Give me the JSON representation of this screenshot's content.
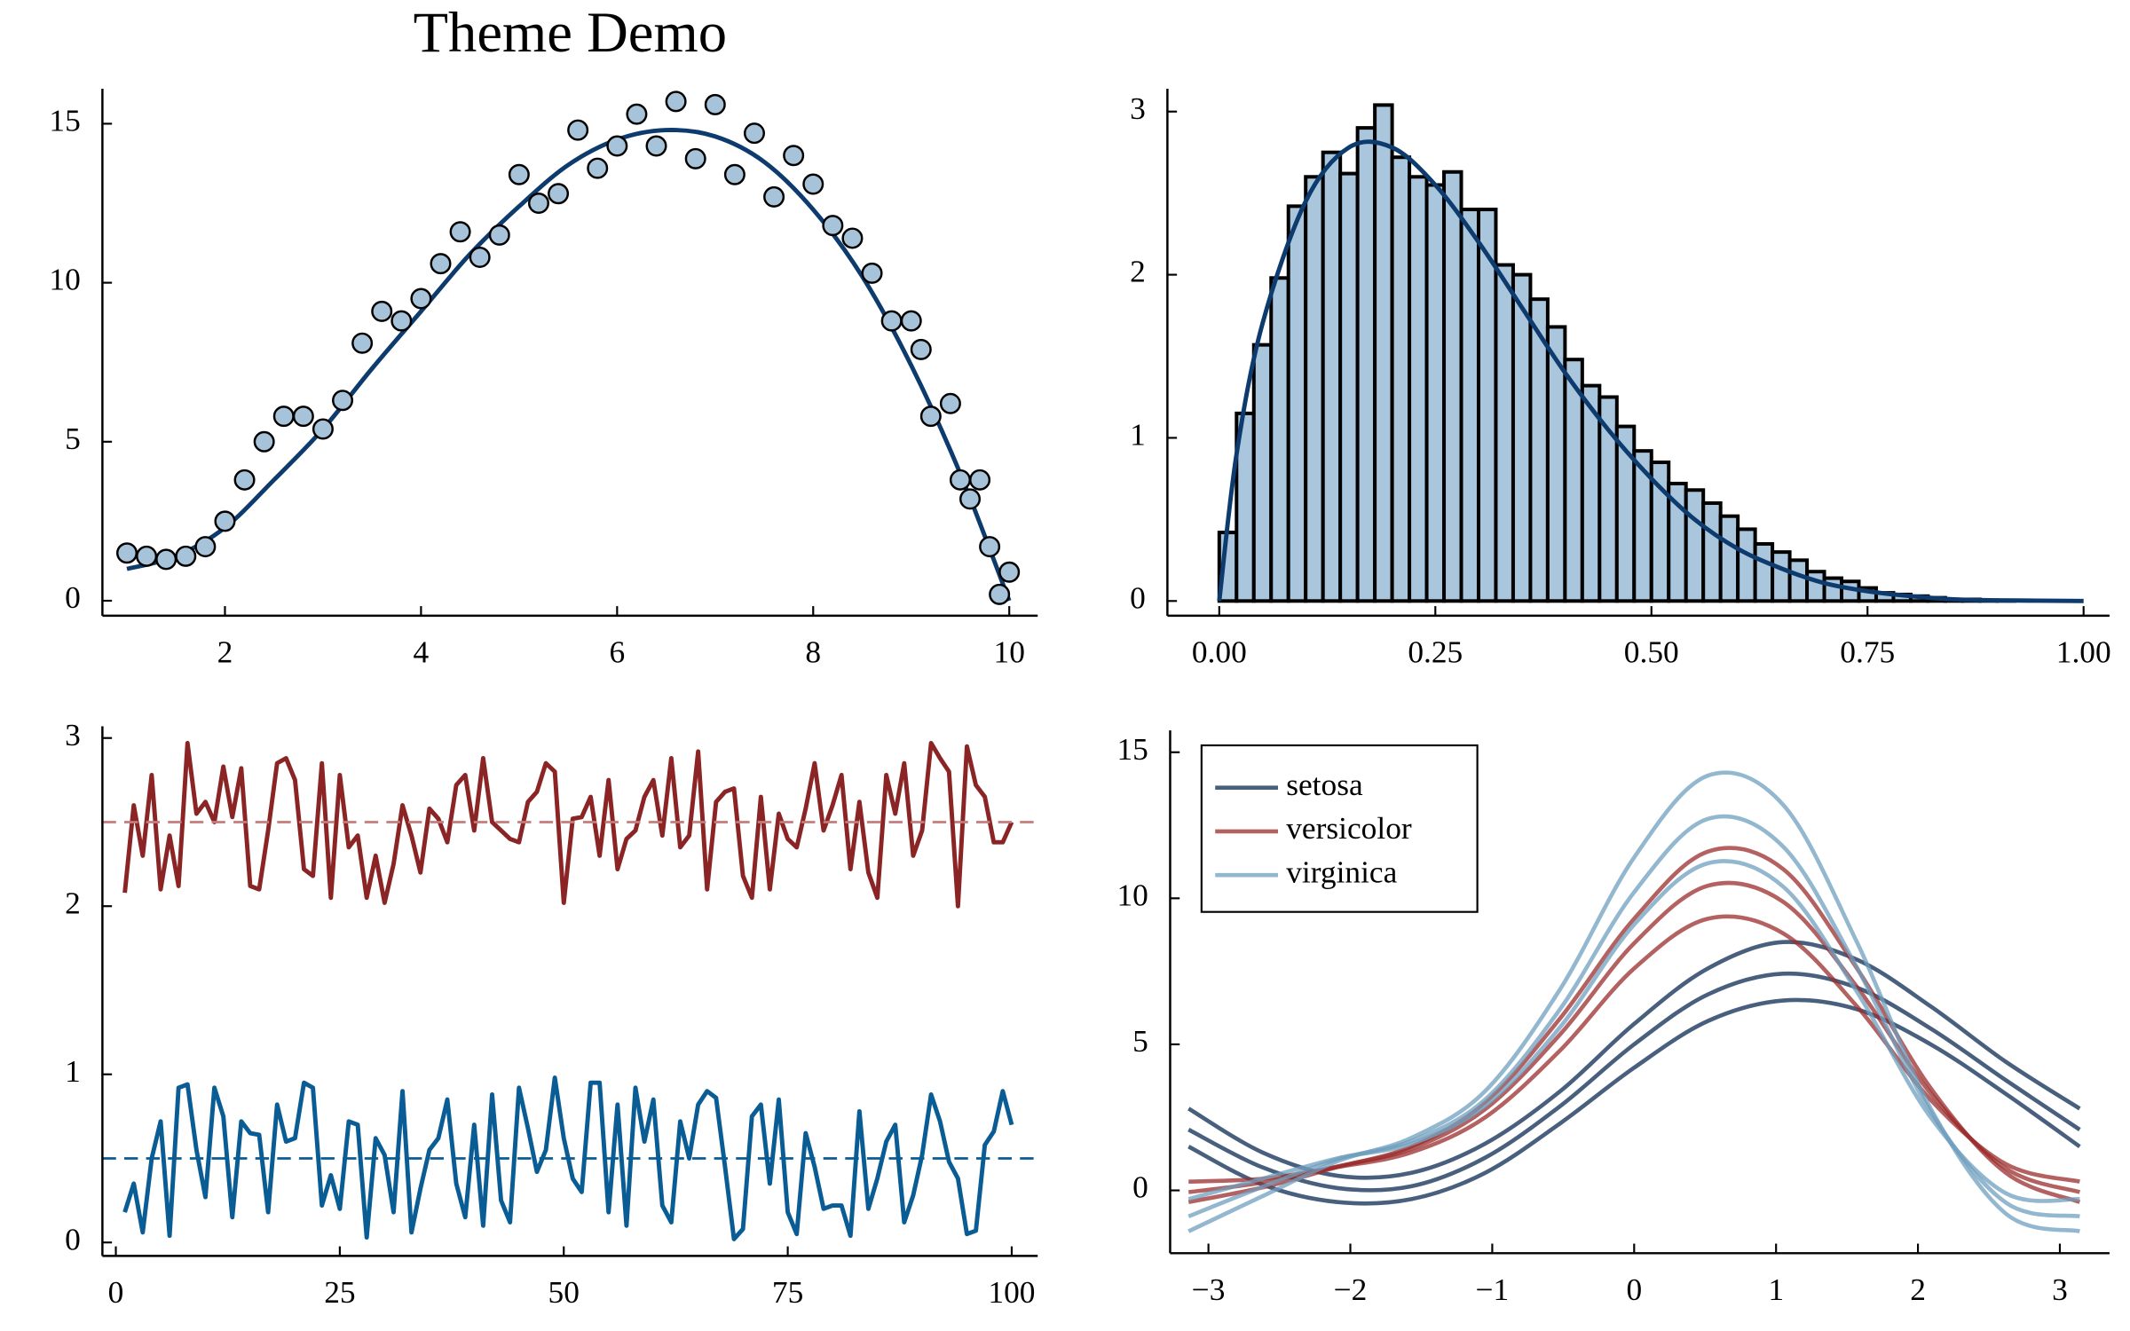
{
  "chart_data": [
    {
      "type": "scatter",
      "title": "Theme Demo",
      "xlim": [
        0.75,
        10.29
      ],
      "ylim": [
        -0.47,
        16.1
      ],
      "xticks": [
        2,
        4,
        6,
        8,
        10
      ],
      "yticks": [
        0,
        5,
        10,
        15
      ],
      "series": [
        {
          "type": "scatter",
          "color": "#a6c3d9",
          "x": [
            1.0,
            1.2,
            1.4,
            1.6,
            1.8,
            2.0,
            2.2,
            2.4,
            2.6,
            2.8,
            3.0,
            3.2,
            3.4,
            3.6,
            3.8,
            4.0,
            4.2,
            4.4,
            4.6,
            4.8,
            5.0,
            5.2,
            5.4,
            5.6,
            5.8,
            6.0,
            6.2,
            6.4,
            6.6,
            6.8,
            7.0,
            7.2,
            7.4,
            7.6,
            7.8,
            8.0,
            8.2,
            8.4,
            8.6,
            8.8,
            9.0,
            9.1,
            9.2,
            9.4,
            9.5,
            9.6,
            9.7,
            9.8,
            9.9,
            10.0
          ],
          "values": [
            1.5,
            1.4,
            1.3,
            1.4,
            1.7,
            2.5,
            3.8,
            5.0,
            5.8,
            5.8,
            5.4,
            6.3,
            8.1,
            9.1,
            8.8,
            9.5,
            10.6,
            11.6,
            10.8,
            11.5,
            13.4,
            12.5,
            12.8,
            14.8,
            13.6,
            14.3,
            15.3,
            14.3,
            15.7,
            13.9,
            15.6,
            13.4,
            14.7,
            12.7,
            14.0,
            13.1,
            11.8,
            11.4,
            10.3,
            8.8,
            8.8,
            7.9,
            5.8,
            6.2,
            3.8,
            3.2,
            3.8,
            1.7,
            0.2,
            0.9
          ]
        },
        {
          "type": "line",
          "color": "#0d3b6e",
          "x": [
            1.0,
            1.5,
            2.0,
            2.5,
            3.0,
            3.5,
            4.0,
            4.5,
            5.0,
            5.5,
            6.0,
            6.5,
            7.0,
            7.5,
            8.0,
            8.5,
            9.0,
            9.5,
            10.0
          ],
          "values": [
            1.0,
            1.4,
            2.3,
            3.8,
            5.4,
            7.3,
            9.1,
            10.9,
            12.4,
            13.7,
            14.5,
            14.8,
            14.6,
            13.8,
            12.3,
            10.2,
            7.4,
            4.0,
            0.0
          ]
        }
      ]
    },
    {
      "type": "histogram",
      "xlim": [
        -0.06,
        1.03
      ],
      "ylim": [
        -0.09,
        3.14
      ],
      "xticks": [
        {
          "value": 0,
          "label": "0.00"
        },
        {
          "value": 0.25,
          "label": "0.25"
        },
        {
          "value": 0.5,
          "label": "0.50"
        },
        {
          "value": 0.75,
          "label": "0.75"
        },
        {
          "value": 1,
          "label": "1.00"
        }
      ],
      "yticks": [
        0,
        1,
        2,
        3
      ],
      "color": "#a9c6dd",
      "edge_color": "#000000",
      "bins": [
        0,
        0.02,
        0.04,
        0.06,
        0.08,
        0.1,
        0.12,
        0.14,
        0.16,
        0.18,
        0.2,
        0.22,
        0.24,
        0.26,
        0.28,
        0.3,
        0.32,
        0.34,
        0.36,
        0.38,
        0.4,
        0.42,
        0.44,
        0.46,
        0.48,
        0.5,
        0.52,
        0.54,
        0.56,
        0.58,
        0.6,
        0.62,
        0.64,
        0.66,
        0.68,
        0.7,
        0.72,
        0.74,
        0.76,
        0.78,
        0.8,
        0.82,
        0.84,
        0.86,
        0.88,
        0.9,
        0.92,
        0.94,
        0.96,
        0.98,
        1.0
      ],
      "values": [
        0.42,
        1.15,
        1.57,
        1.98,
        2.42,
        2.6,
        2.75,
        2.62,
        2.9,
        3.04,
        2.72,
        2.6,
        2.55,
        2.63,
        2.4,
        2.4,
        2.06,
        2.0,
        1.85,
        1.68,
        1.48,
        1.32,
        1.25,
        1.07,
        0.92,
        0.85,
        0.72,
        0.68,
        0.6,
        0.52,
        0.44,
        0.35,
        0.3,
        0.25,
        0.18,
        0.14,
        0.12,
        0.08,
        0.05,
        0.04,
        0.03,
        0.02,
        0.01,
        0.01,
        0.005,
        0.002,
        0,
        0,
        0,
        0
      ],
      "series": [
        {
          "type": "line",
          "color": "#0d3b6e",
          "x": [
            0,
            0.02,
            0.05,
            0.1,
            0.15,
            0.2,
            0.25,
            0.3,
            0.35,
            0.4,
            0.45,
            0.5,
            0.55,
            0.6,
            0.65,
            0.7,
            0.75,
            0.8,
            0.85,
            0.9,
            1.0
          ],
          "values": [
            0,
            0.9,
            1.7,
            2.45,
            2.78,
            2.78,
            2.55,
            2.2,
            1.8,
            1.4,
            1.05,
            0.75,
            0.5,
            0.32,
            0.2,
            0.11,
            0.06,
            0.03,
            0.01,
            0.004,
            0
          ]
        }
      ]
    },
    {
      "type": "line",
      "xlim": [
        -1.5,
        102.9
      ],
      "ylim": [
        -0.08,
        3.07
      ],
      "xticks": [
        0,
        25,
        50,
        75,
        100
      ],
      "yticks": [
        0,
        1,
        2,
        3
      ],
      "x": [
        1,
        2,
        3,
        4,
        5,
        6,
        7,
        8,
        9,
        10,
        11,
        12,
        13,
        14,
        15,
        16,
        17,
        18,
        19,
        20,
        21,
        22,
        23,
        24,
        25,
        26,
        27,
        28,
        29,
        30,
        31,
        32,
        33,
        34,
        35,
        36,
        37,
        38,
        39,
        40,
        41,
        42,
        43,
        44,
        45,
        46,
        47,
        48,
        49,
        50,
        51,
        52,
        53,
        54,
        55,
        56,
        57,
        58,
        59,
        60,
        61,
        62,
        63,
        64,
        65,
        66,
        67,
        68,
        69,
        70,
        71,
        72,
        73,
        74,
        75,
        76,
        77,
        78,
        79,
        80,
        81,
        82,
        83,
        84,
        85,
        86,
        87,
        88,
        89,
        90,
        91,
        92,
        93,
        94,
        95,
        96,
        97,
        98,
        99,
        100
      ],
      "series": [
        {
          "type": "line",
          "color": "#8b2525",
          "values": [
            2.08,
            2.6,
            2.3,
            2.78,
            2.1,
            2.42,
            2.12,
            2.97,
            2.55,
            2.62,
            2.5,
            2.83,
            2.53,
            2.82,
            2.12,
            2.1,
            2.45,
            2.85,
            2.88,
            2.75,
            2.22,
            2.18,
            2.85,
            2.05,
            2.78,
            2.35,
            2.42,
            2.05,
            2.3,
            2.02,
            2.25,
            2.6,
            2.42,
            2.2,
            2.58,
            2.52,
            2.38,
            2.72,
            2.78,
            2.45,
            2.88,
            2.5,
            2.45,
            2.4,
            2.38,
            2.62,
            2.68,
            2.85,
            2.8,
            2.02,
            2.52,
            2.53,
            2.65,
            2.3,
            2.75,
            2.22,
            2.4,
            2.45,
            2.65,
            2.75,
            2.42,
            2.88,
            2.35,
            2.42,
            2.92,
            2.1,
            2.62,
            2.68,
            2.7,
            2.18,
            2.05,
            2.65,
            2.1,
            2.55,
            2.4,
            2.35,
            2.58,
            2.85,
            2.45,
            2.6,
            2.78,
            2.22,
            2.62,
            2.2,
            2.05,
            2.78,
            2.55,
            2.85,
            2.3,
            2.45,
            2.97,
            2.88,
            2.8,
            2.0,
            2.95,
            2.72,
            2.65,
            2.38,
            2.38,
            2.5
          ]
        },
        {
          "type": "line",
          "color": "#0a5c94",
          "values": [
            0.18,
            0.35,
            0.06,
            0.5,
            0.72,
            0.04,
            0.92,
            0.94,
            0.55,
            0.27,
            0.92,
            0.75,
            0.15,
            0.72,
            0.65,
            0.64,
            0.18,
            0.82,
            0.6,
            0.62,
            0.95,
            0.92,
            0.22,
            0.4,
            0.2,
            0.72,
            0.7,
            0.03,
            0.62,
            0.52,
            0.18,
            0.9,
            0.06,
            0.32,
            0.55,
            0.62,
            0.85,
            0.35,
            0.15,
            0.7,
            0.1,
            0.88,
            0.25,
            0.12,
            0.92,
            0.68,
            0.42,
            0.55,
            0.98,
            0.62,
            0.38,
            0.3,
            0.95,
            0.95,
            0.18,
            0.82,
            0.1,
            0.92,
            0.6,
            0.85,
            0.22,
            0.12,
            0.72,
            0.5,
            0.82,
            0.9,
            0.86,
            0.45,
            0.02,
            0.08,
            0.75,
            0.82,
            0.35,
            0.85,
            0.18,
            0.05,
            0.65,
            0.45,
            0.2,
            0.22,
            0.22,
            0.04,
            0.78,
            0.2,
            0.38,
            0.6,
            0.7,
            0.12,
            0.28,
            0.52,
            0.88,
            0.72,
            0.48,
            0.38,
            0.05,
            0.07,
            0.58,
            0.66,
            0.9,
            0.7
          ]
        }
      ],
      "hlines": [
        {
          "value": 2.5,
          "color": "#c47c7c"
        },
        {
          "value": 0.5,
          "color": "#0a5c94"
        }
      ]
    },
    {
      "type": "line",
      "legend": "top-left",
      "xlim": [
        -3.27,
        3.35
      ],
      "ylim": [
        -2.15,
        15.75
      ],
      "xticks": [
        {
          "value": -3,
          "label": "−3"
        },
        {
          "value": -2,
          "label": "−2"
        },
        {
          "value": -1,
          "label": "−1"
        },
        0,
        1,
        2,
        3
      ],
      "yticks": [
        0,
        5,
        10,
        15
      ],
      "x": [
        -3.14,
        -2.62,
        -2.09,
        -1.57,
        -1.05,
        -0.52,
        0,
        0.52,
        1.05,
        1.57,
        2.09,
        2.62,
        3.14
      ],
      "series": [
        {
          "name": "setosa",
          "color": "#0b2a52",
          "curves": [
            [
              2.08,
              0.79,
              0.08,
              0.14,
              1.12,
              2.89,
              5.0,
              6.71,
              7.42,
              6.94,
              5.54,
              3.77,
              2.08
            ],
            [
              1.5,
              0.2,
              -0.4,
              -0.3,
              0.6,
              2.3,
              4.2,
              5.8,
              6.5,
              6.2,
              5.0,
              3.3,
              1.5
            ],
            [
              2.8,
              1.3,
              0.5,
              0.6,
              1.6,
              3.4,
              5.7,
              7.6,
              8.5,
              7.9,
              6.3,
              4.4,
              2.8
            ]
          ]
        },
        {
          "name": "versicolor",
          "color": "#9b2c2c",
          "curves": [
            [
              -0.06,
              0.27,
              0.82,
              1.43,
              2.78,
              5.35,
              8.46,
              10.43,
              9.88,
              6.97,
              3.32,
              0.75,
              -0.06
            ],
            [
              0.3,
              0.4,
              0.8,
              1.3,
              2.5,
              4.8,
              7.6,
              9.3,
              8.8,
              6.3,
              3.1,
              0.9,
              0.3
            ],
            [
              -0.4,
              0.1,
              0.8,
              1.5,
              3.0,
              5.9,
              9.3,
              11.6,
              11.0,
              7.6,
              3.5,
              0.6,
              -0.4
            ]
          ]
        },
        {
          "name": "virginica",
          "color": "#6f9fbd",
          "curves": [
            [
              -0.89,
              0.12,
              1.07,
              1.69,
              3.11,
              6.22,
              10.21,
              12.72,
              11.77,
              7.63,
              2.69,
              -0.42,
              -0.89
            ],
            [
              -0.3,
              0.4,
              1.1,
              1.6,
              2.9,
              5.6,
              9.1,
              11.2,
              10.4,
              6.8,
              2.5,
              -0.1,
              -0.3
            ],
            [
              -1.4,
              -0.2,
              1.0,
              1.8,
              3.4,
              6.9,
              11.4,
              14.2,
              13.2,
              8.5,
              2.8,
              -0.8,
              -1.4
            ]
          ]
        }
      ]
    }
  ]
}
